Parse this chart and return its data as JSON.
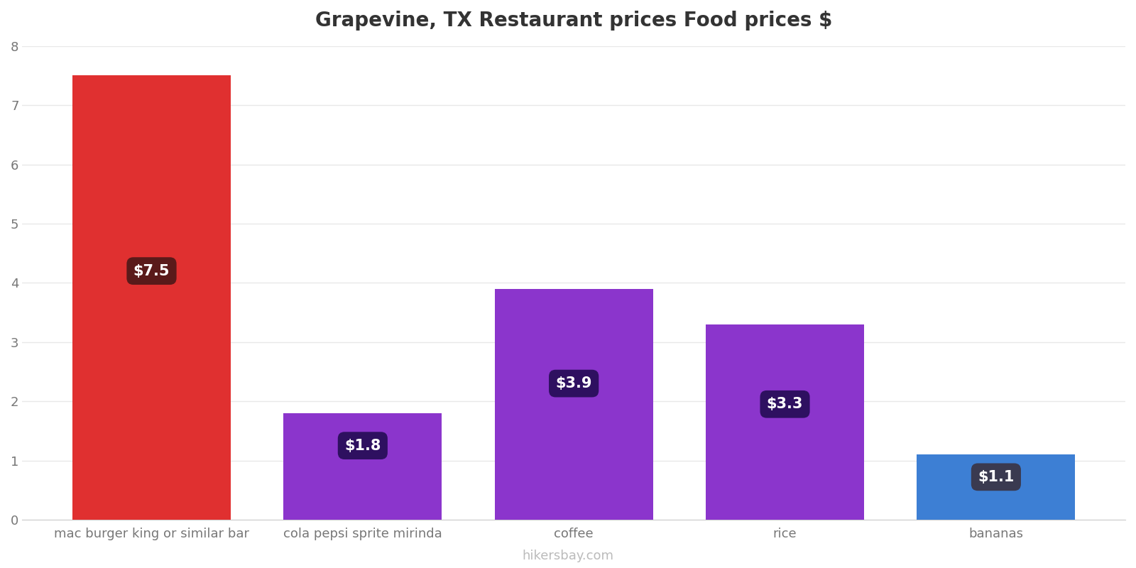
{
  "title": "Grapevine, TX Restaurant prices Food prices $",
  "categories": [
    "mac burger king or similar bar",
    "cola pepsi sprite mirinda",
    "coffee",
    "rice",
    "bananas"
  ],
  "values": [
    7.5,
    1.8,
    3.9,
    3.3,
    1.1
  ],
  "bar_colors": [
    "#e03030",
    "#8b35cc",
    "#8b35cc",
    "#8b35cc",
    "#3d7fd4"
  ],
  "label_texts": [
    "$7.5",
    "$1.8",
    "$3.9",
    "$3.3",
    "$1.1"
  ],
  "label_bg_colors": [
    "#5a1a1a",
    "#2e1060",
    "#2e1060",
    "#2e1060",
    "#3a3a50"
  ],
  "label_y_positions": [
    4.2,
    1.25,
    2.3,
    1.95,
    0.72
  ],
  "ylim": [
    0,
    8
  ],
  "yticks": [
    0,
    1,
    2,
    3,
    4,
    5,
    6,
    7,
    8
  ],
  "title_fontsize": 20,
  "tick_fontsize": 13,
  "label_fontsize": 15,
  "watermark": "hikersbay.com",
  "background_color": "#ffffff",
  "grid_color": "#e8e8e8",
  "bar_width": 0.75
}
